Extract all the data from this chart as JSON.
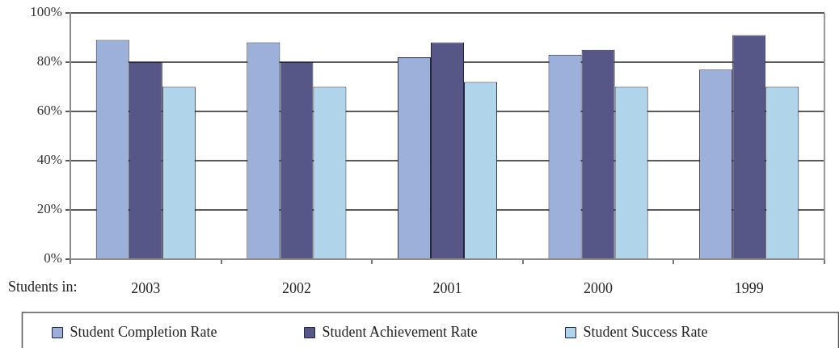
{
  "chart_data": {
    "type": "bar",
    "categories": [
      "2003",
      "2002",
      "2001",
      "2000",
      "1999"
    ],
    "xlabel": "Students in:",
    "series": [
      {
        "name": "Student Completion Rate",
        "color": "#9cb0da",
        "values": [
          89,
          88,
          82,
          83,
          77
        ]
      },
      {
        "name": "Student Achievement Rate",
        "color": "#575787",
        "values": [
          80,
          80,
          88,
          85,
          91
        ]
      },
      {
        "name": "Student Success Rate",
        "color": "#b0d4ea",
        "values": [
          70,
          70,
          72,
          70,
          70
        ]
      }
    ],
    "ylim": [
      0,
      100
    ],
    "yticks": [
      {
        "value": 0,
        "label": "0%"
      },
      {
        "value": 20,
        "label": "20%"
      },
      {
        "value": 40,
        "label": "40%"
      },
      {
        "value": 60,
        "label": "60%"
      },
      {
        "value": 80,
        "label": "80%"
      },
      {
        "value": 100,
        "label": "100%"
      }
    ],
    "grid": "y",
    "legend": "bottom"
  }
}
